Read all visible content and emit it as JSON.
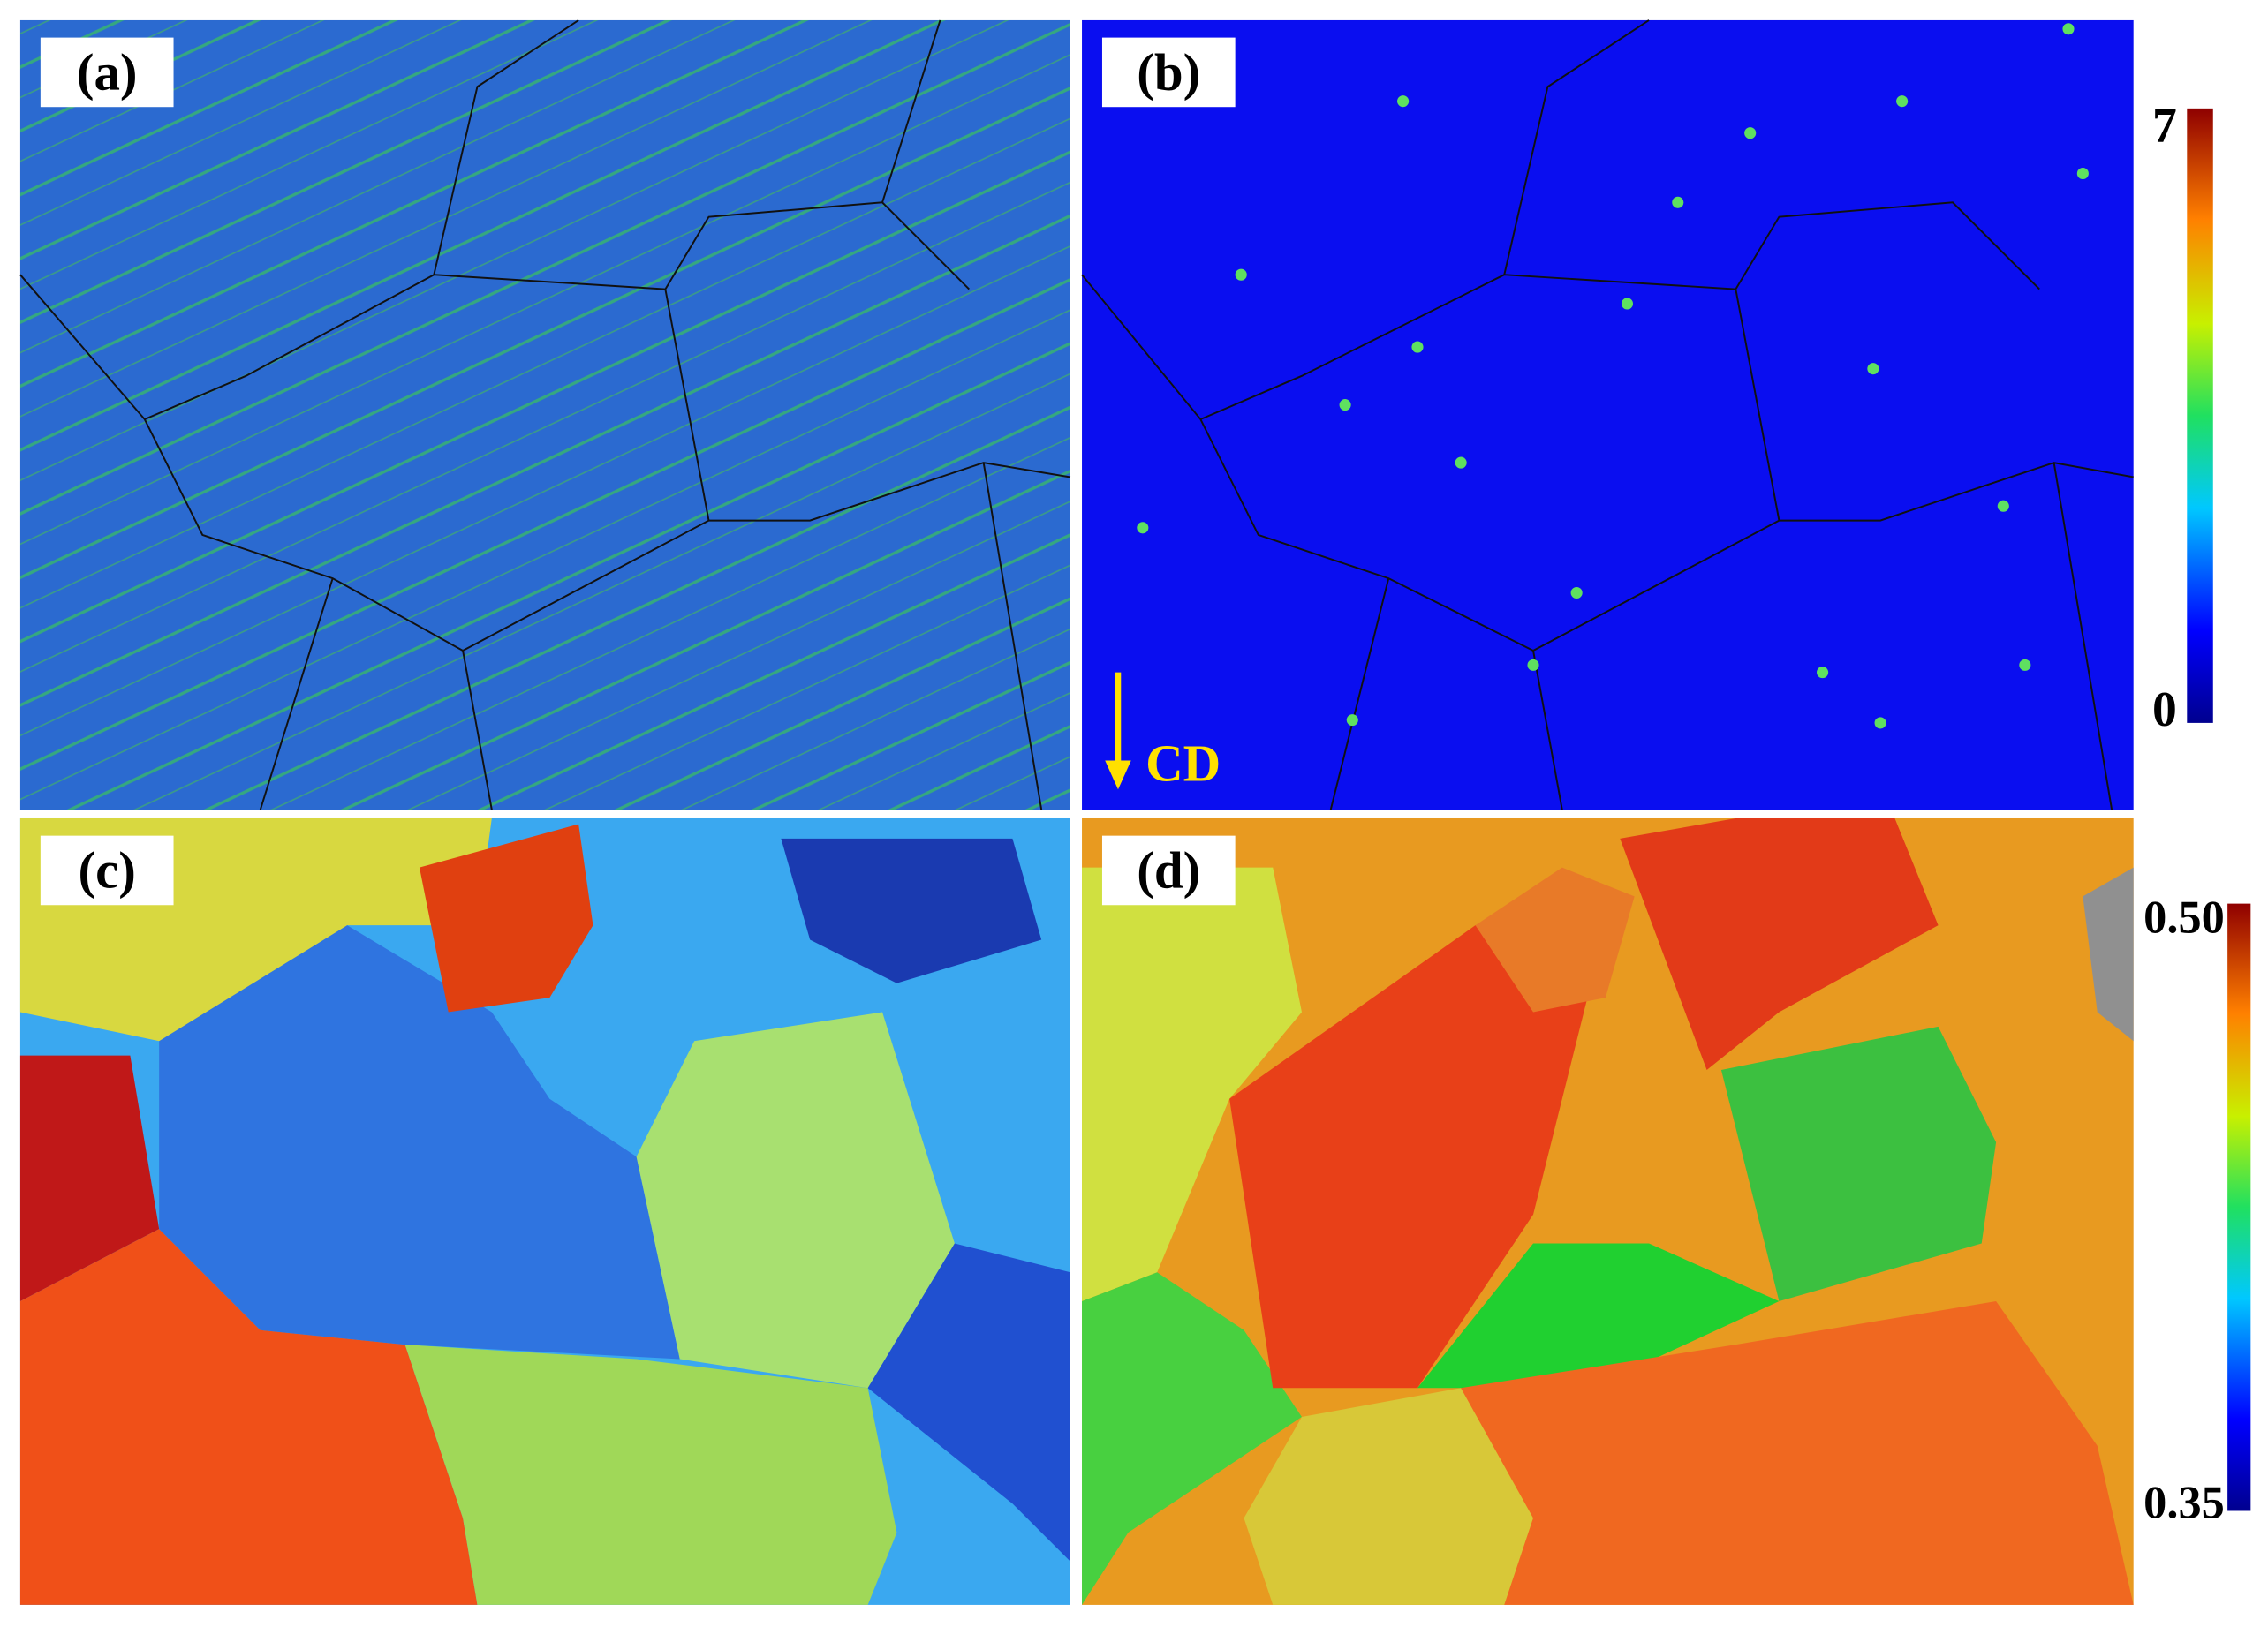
{
  "panels": [
    {
      "label": "(a)"
    },
    {
      "label": "(b)"
    },
    {
      "label": "(c)"
    },
    {
      "label": "(d)"
    }
  ],
  "direction_label": "CD",
  "colorbars": [
    {
      "max_label": "7",
      "min_label": "0"
    },
    {
      "max_label": "0.50",
      "min_label": "0.35"
    }
  ]
}
